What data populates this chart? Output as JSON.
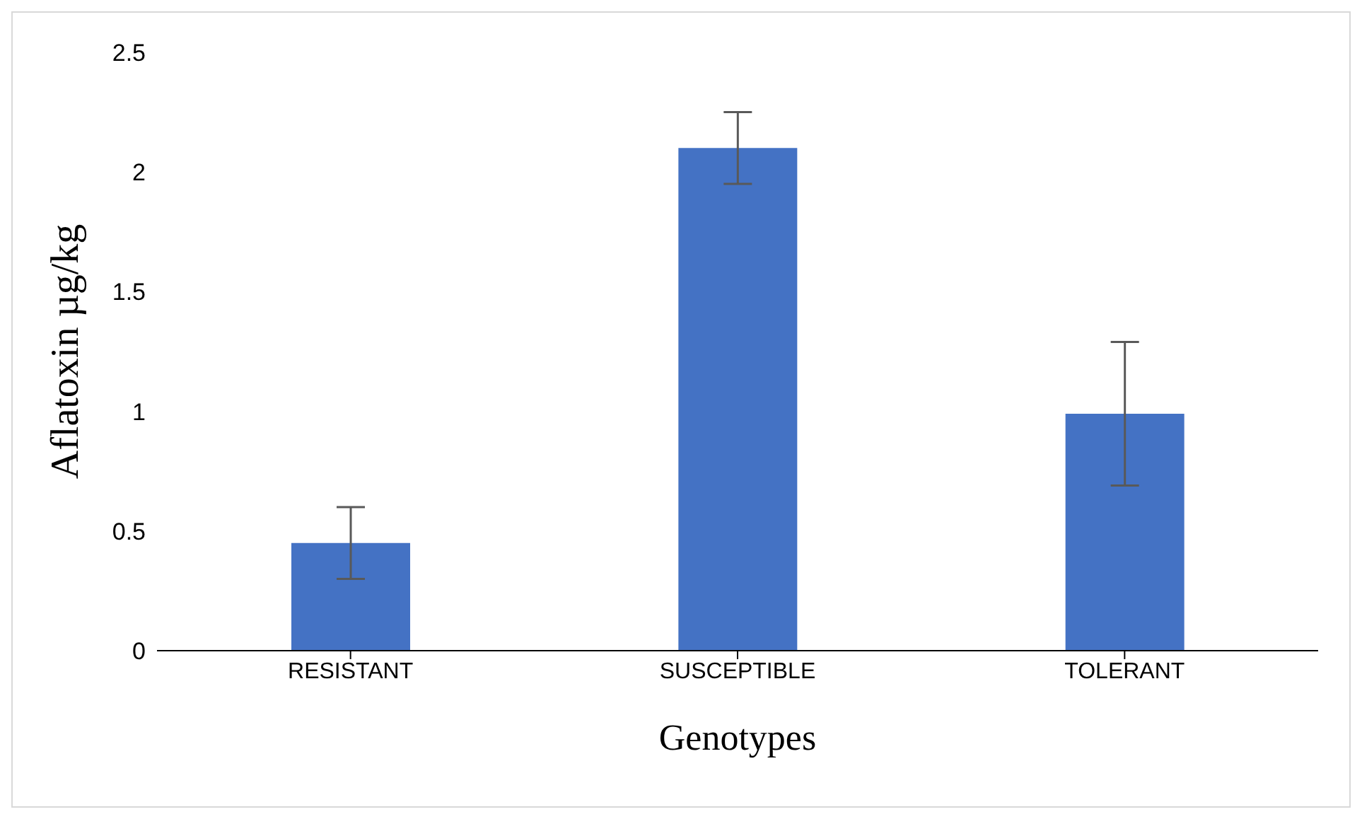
{
  "chart_data": {
    "type": "bar",
    "xlabel": "Genotypes",
    "ylabel": "Aflatoxin µg/kg",
    "categories": [
      "RESISTANT",
      "SUSCEPTIBLE",
      "TOLERANT"
    ],
    "values": [
      0.45,
      2.1,
      0.99
    ],
    "errors": [
      0.15,
      0.15,
      0.3
    ],
    "color": "#4472c4",
    "ylim": [
      0,
      2.5
    ],
    "yticks": [
      0,
      0.5,
      1,
      1.5,
      2,
      2.5
    ],
    "grid": false,
    "legend": false
  }
}
